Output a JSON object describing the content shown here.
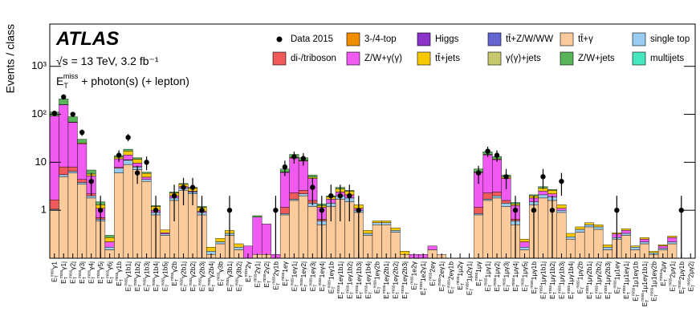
{
  "chart_data": {
    "type": "stacked_histogram",
    "title": "ATLAS",
    "annotations": [
      "√s = 13 TeV, 3.2 fb⁻¹",
      " + photon(s) (+ lepton)"
    ],
    "met": {
      "base": "E",
      "sub": "T",
      "sup": "miss"
    },
    "ylabel": "Events / class",
    "log_scale": true,
    "ylim": [
      0.1,
      7600
    ],
    "yticks": [
      1,
      10,
      {
        "value": 100,
        "label": "10²"
      },
      {
        "value": 1000,
        "label": "10³"
      }
    ],
    "categories": [
      "γ1",
      "γ1j",
      "γ2j",
      "γ3j",
      "γ4j",
      "γ5j",
      "γ6j",
      "γ1b",
      "γ1b1j",
      "γ1b2j",
      "γ1b3j",
      "γ1b4j",
      "γ1b5j",
      "γ2b",
      "γ2b1j",
      "γ2b2j",
      "γ2b3j",
      "γ2b4j",
      "γ3b",
      "γ3b1j",
      "γ3b2j",
      "2γ",
      "2γ1j",
      "2γ2j",
      "2γ1b",
      "1eγ",
      "1eγ1j",
      "1eγ2j",
      "1eγ3j",
      "1eγ4j",
      "1eγ1b",
      "1eγ1b1j",
      "1eγ1b2j",
      "1eγ1b3j",
      "1eγ1b4j",
      "1eγ2b",
      "1eγ2b1j",
      "1eγ2b2j",
      "1eγ2b3j",
      "1e2γ",
      "1e2γ1j",
      "2eγ",
      "2eγ1j",
      "2eγ1b",
      "1μ2γ",
      "1μ2γ1j",
      "1μγ",
      "1μγ1j",
      "1μγ2j",
      "1μγ3j",
      "1μγ4j",
      "1μγ5j",
      "1μγ1b",
      "1μγ1b1j",
      "1μγ1b2j",
      "1μγ1b3j",
      "1μγ1b4j",
      "1μγ2b",
      "1μγ2b1j",
      "1μγ2b2j",
      "1μγ2b3j",
      "1μ1eγ",
      "1μ1eγ1j",
      "1μ1eγ1b",
      "1μ1eγ1b1j",
      "1μ1eγ2b",
      "2μγ",
      "2μγ1j",
      "2μγ1b",
      "2μγ2j"
    ],
    "data": {
      "name": "Data 2015",
      "color": "#000000",
      "values": [
        105,
        230,
        100,
        42,
        4,
        1,
        null,
        14,
        33,
        6,
        10,
        1,
        null,
        2,
        3,
        3,
        1,
        null,
        null,
        1,
        null,
        null,
        null,
        null,
        1,
        8,
        13,
        12,
        3,
        1,
        2,
        2,
        2,
        1,
        null,
        null,
        null,
        null,
        null,
        null,
        null,
        null,
        null,
        null,
        null,
        null,
        6,
        17,
        14,
        5,
        1,
        null,
        1,
        5,
        1,
        4,
        null,
        null,
        null,
        null,
        null,
        1,
        null,
        null,
        null,
        null,
        null,
        null,
        1,
        null
      ]
    },
    "series": [
      {
        "name": "tt̄+γ",
        "color": "#fccb9c",
        "values": [
          1,
          5,
          6,
          3.5,
          1.8,
          0.6,
          0.15,
          6,
          9,
          7,
          4,
          0.8,
          0.3,
          1.6,
          2.6,
          2.2,
          0.8,
          0.12,
          0.2,
          0.3,
          0.15,
          0.1,
          0.12,
          0.12,
          0.1,
          0.8,
          1.6,
          2,
          1.2,
          0.5,
          1.2,
          1.7,
          1.5,
          0.9,
          0.3,
          0.5,
          0.5,
          0.35,
          0.12,
          0.1,
          0.1,
          0.15,
          0.12,
          0.1,
          0.1,
          0.1,
          0.8,
          1.6,
          1.8,
          1.2,
          0.5,
          0.15,
          1.3,
          1.8,
          1.6,
          0.9,
          0.25,
          0.35,
          0.45,
          0.4,
          0.15,
          0.25,
          0.3,
          0.15,
          0.2,
          0.12,
          0.15,
          0.2,
          0.1,
          0.1
        ]
      },
      {
        "name": "single top",
        "color": "#99ccf0",
        "values": [
          0.05,
          0.5,
          0.5,
          0.3,
          0.2,
          0.05,
          0.02,
          1.5,
          2,
          1,
          0.4,
          0.1,
          0.02,
          0.2,
          0.3,
          0.2,
          0.1,
          0.02,
          0.02,
          0.03,
          0.02,
          0,
          0,
          0,
          0,
          0.05,
          0.1,
          0.2,
          0.2,
          0.1,
          0.2,
          0.3,
          0.3,
          0.1,
          0.03,
          0.05,
          0.05,
          0.03,
          0,
          0,
          0,
          0,
          0,
          0,
          0,
          0,
          0.05,
          0.1,
          0.2,
          0.2,
          0.1,
          0.02,
          0.2,
          0.3,
          0.3,
          0.1,
          0.03,
          0.05,
          0.05,
          0.05,
          0.02,
          0.02,
          0.03,
          0.02,
          0.02,
          0.01,
          0.01,
          0.02,
          0,
          0
        ]
      },
      {
        "name": "di-/triboson",
        "color": "#f05a5a",
        "values": [
          0.6,
          2.5,
          1.5,
          0.6,
          0.2,
          0.05,
          0,
          0.3,
          0.2,
          0.1,
          0,
          0,
          0,
          0,
          0,
          0,
          0,
          0,
          0,
          0,
          0,
          0,
          0,
          0,
          0,
          0.3,
          0.6,
          0.4,
          0.2,
          0.05,
          0,
          0,
          0,
          0,
          0,
          0,
          0,
          0,
          0,
          0,
          0,
          0,
          0,
          0,
          0,
          0,
          0.3,
          0.6,
          0.4,
          0.2,
          0.05,
          0,
          0,
          0,
          0,
          0,
          0,
          0,
          0,
          0,
          0,
          0,
          0,
          0,
          0,
          0,
          0,
          0,
          0,
          0
        ]
      },
      {
        "name": "Z/W+γ(γ)",
        "color": "#f05af0",
        "values": [
          90,
          150,
          60,
          20,
          3,
          0.4,
          0.05,
          4,
          3,
          1.5,
          0.5,
          0.1,
          0.02,
          0.2,
          0.2,
          0.1,
          0.05,
          0,
          0,
          0,
          0,
          0.08,
          0.6,
          0.4,
          0.02,
          5,
          10,
          8,
          3,
          0.5,
          0.3,
          0.4,
          0.3,
          0.1,
          0,
          0,
          0,
          0,
          0,
          0.02,
          0.02,
          0.03,
          0,
          0,
          0,
          0,
          5,
          12,
          9,
          3,
          0.6,
          0.05,
          0.3,
          0.4,
          0.3,
          0.1,
          0,
          0,
          0,
          0,
          0,
          0.05,
          0.05,
          0,
          0.03,
          0,
          0.02,
          0.05,
          0,
          0
        ]
      },
      {
        "name": "tt̄+jets",
        "color": "#f5c800",
        "values": [
          0.2,
          1,
          1,
          0.8,
          0.5,
          0.2,
          0.05,
          1,
          3,
          2,
          1,
          0.2,
          0.05,
          0.3,
          0.4,
          0.4,
          0.2,
          0.03,
          0.04,
          0.05,
          0.03,
          0,
          0,
          0,
          0,
          0.1,
          0.3,
          0.3,
          0.3,
          0.1,
          0.2,
          0.4,
          0.4,
          0.2,
          0.05,
          0.05,
          0.05,
          0.05,
          0.02,
          0,
          0,
          0,
          0,
          0,
          0,
          0,
          0.1,
          0.3,
          0.3,
          0.3,
          0.1,
          0.03,
          0.2,
          0.4,
          0.4,
          0.2,
          0.05,
          0.05,
          0.05,
          0.05,
          0.02,
          0.02,
          0.03,
          0.01,
          0.02,
          0.01,
          0.01,
          0.02,
          0,
          0
        ]
      },
      {
        "name": "Z/W+jets",
        "color": "#5ab45a",
        "values": [
          20,
          50,
          20,
          5,
          1.2,
          0.2,
          0.03,
          1,
          1.5,
          0.8,
          0.3,
          0.05,
          0,
          0.1,
          0.1,
          0.1,
          0.05,
          0,
          0,
          0,
          0,
          0,
          0.05,
          0,
          0,
          1,
          2,
          1.5,
          0.5,
          0.1,
          0.1,
          0.2,
          0.1,
          0,
          0,
          0,
          0,
          0,
          0,
          0,
          0,
          0,
          0,
          0,
          0,
          0,
          1,
          2,
          1.5,
          0.5,
          0.1,
          0,
          0.1,
          0.2,
          0.1,
          0,
          0,
          0,
          0,
          0,
          0,
          0,
          0,
          0,
          0,
          0,
          0,
          0,
          0,
          0
        ]
      },
      {
        "name": "3-/4-top",
        "color": "#f08c00",
        "values": [
          0,
          0,
          0,
          0,
          0,
          0,
          0,
          0,
          0,
          0,
          0,
          0,
          0,
          0,
          0,
          0,
          0,
          0,
          0,
          0,
          0,
          0,
          0,
          0,
          0,
          0,
          0,
          0,
          0,
          0,
          0,
          0,
          0,
          0,
          0,
          0,
          0,
          0,
          0,
          0,
          0,
          0,
          0,
          0,
          0,
          0,
          0,
          0,
          0,
          0,
          0,
          0,
          0,
          0,
          0,
          0,
          0,
          0,
          0,
          0,
          0,
          0,
          0,
          0,
          0,
          0,
          0,
          0,
          0,
          0
        ]
      },
      {
        "name": "Higgs",
        "color": "#8c32c8",
        "values": [
          0,
          0,
          0,
          0,
          0,
          0,
          0,
          0,
          0,
          0,
          0,
          0,
          0,
          0,
          0,
          0,
          0,
          0,
          0,
          0,
          0,
          0,
          0,
          0,
          0,
          0,
          0,
          0,
          0,
          0,
          0,
          0,
          0,
          0,
          0,
          0,
          0,
          0,
          0,
          0,
          0,
          0,
          0,
          0,
          0,
          0,
          0,
          0,
          0,
          0,
          0,
          0,
          0,
          0,
          0,
          0,
          0,
          0,
          0,
          0,
          0,
          0,
          0,
          0,
          0,
          0,
          0,
          0,
          0,
          0
        ]
      },
      {
        "name": "tt̄+Z/W/WW",
        "color": "#6464d2",
        "values": [
          0,
          0,
          0,
          0,
          0,
          0,
          0,
          0,
          0,
          0,
          0,
          0,
          0,
          0,
          0,
          0,
          0,
          0,
          0,
          0,
          0,
          0,
          0,
          0,
          0,
          0,
          0,
          0,
          0,
          0,
          0,
          0,
          0,
          0,
          0,
          0,
          0,
          0,
          0,
          0,
          0,
          0,
          0,
          0,
          0,
          0,
          0,
          0,
          0,
          0,
          0,
          0,
          0,
          0,
          0,
          0,
          0,
          0,
          0,
          0,
          0,
          0,
          0,
          0,
          0,
          0,
          0,
          0,
          0,
          0
        ]
      },
      {
        "name": "γ(γ)+jets",
        "color": "#c8c86e",
        "values": [
          0,
          0,
          0,
          0,
          0,
          0,
          0,
          0,
          0,
          0,
          0,
          0,
          0,
          0,
          0,
          0,
          0,
          0,
          0,
          0,
          0,
          0,
          0,
          0,
          0,
          0,
          0,
          0,
          0,
          0,
          0,
          0,
          0,
          0,
          0,
          0,
          0,
          0,
          0,
          0,
          0,
          0,
          0,
          0,
          0,
          0,
          0,
          0,
          0,
          0,
          0,
          0,
          0,
          0,
          0,
          0,
          0,
          0,
          0,
          0,
          0,
          0,
          0,
          0,
          0,
          0,
          0,
          0,
          0,
          0
        ]
      },
      {
        "name": "multijets",
        "color": "#46e6be",
        "values": [
          0,
          0,
          0,
          0,
          0,
          0,
          0,
          0,
          0,
          0,
          0,
          0,
          0,
          0,
          0,
          0,
          0,
          0,
          0,
          0,
          0,
          0,
          0,
          0,
          0,
          0,
          0,
          0,
          0,
          0,
          0,
          0,
          0,
          0,
          0,
          0,
          0,
          0,
          0,
          0,
          0,
          0,
          0,
          0,
          0,
          0,
          0,
          0,
          0,
          0,
          0,
          0,
          0,
          0,
          0,
          0,
          0,
          0,
          0,
          0,
          0,
          0,
          0,
          0,
          0,
          0,
          0,
          0,
          0,
          0
        ]
      }
    ]
  }
}
